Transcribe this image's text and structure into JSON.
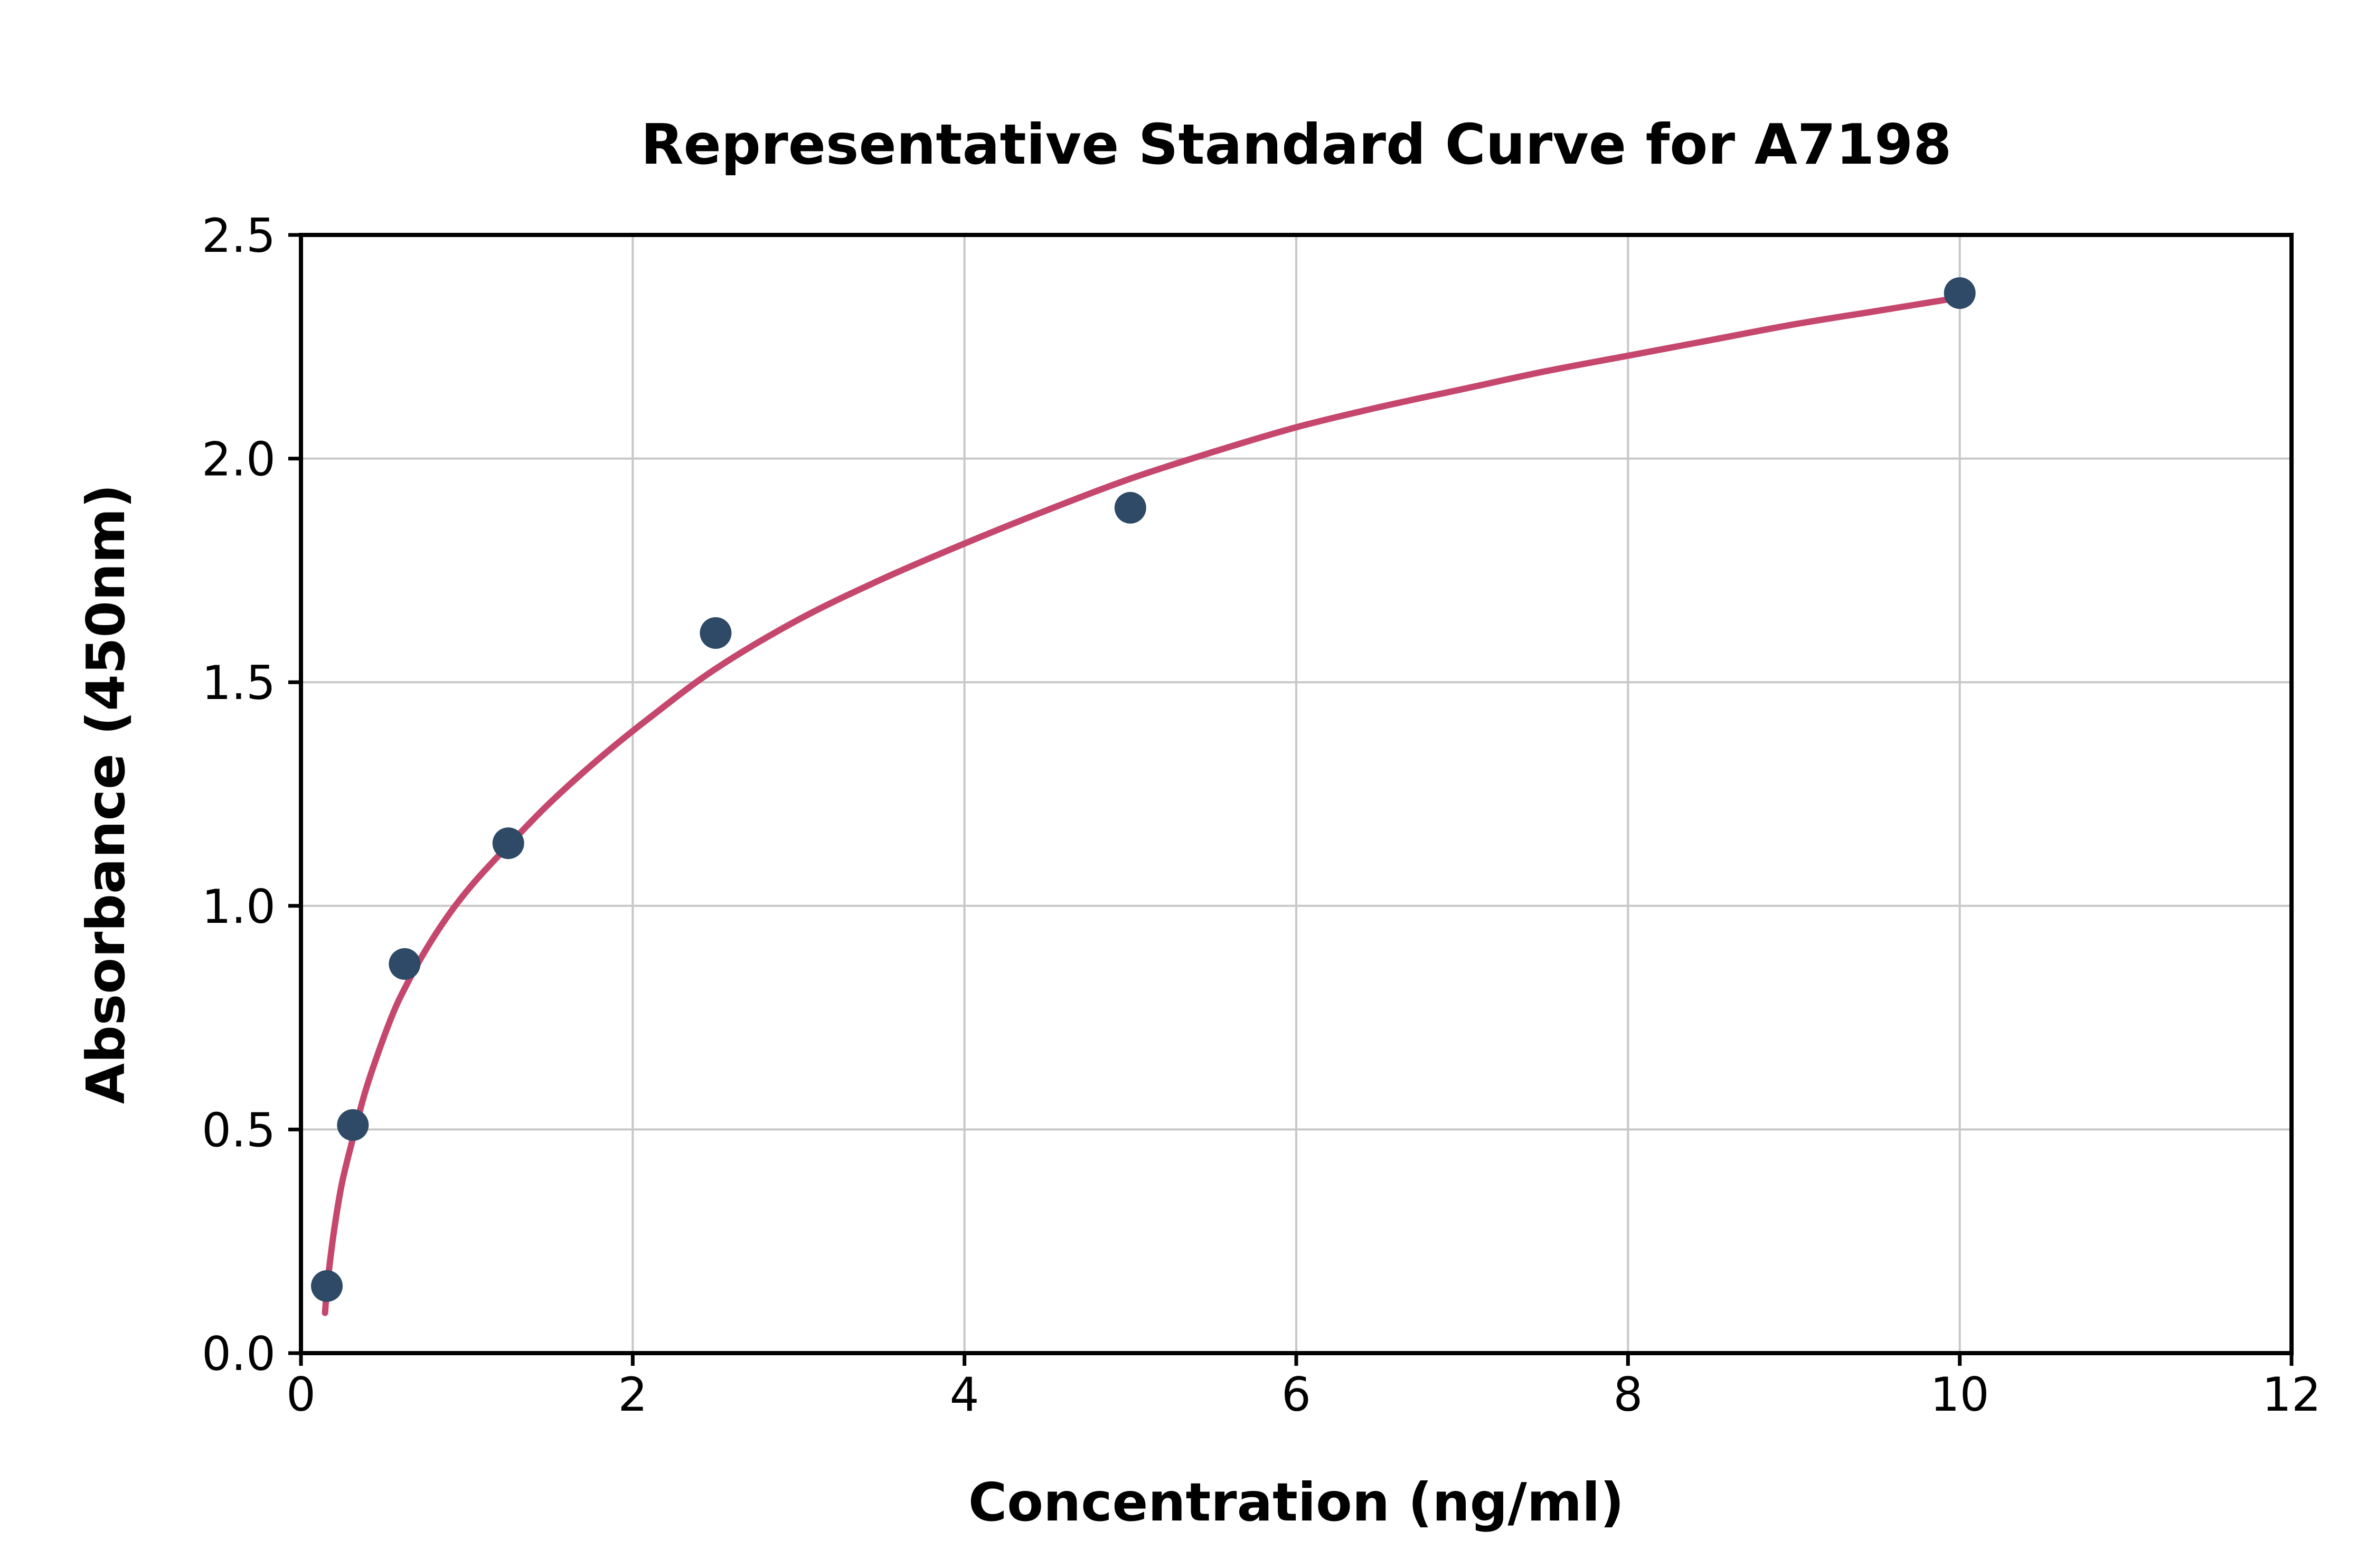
{
  "chart_data": {
    "type": "scatter",
    "title": "Representative Standard Curve for A7198",
    "xlabel": "Concentration (ng/ml)",
    "ylabel": "Absorbance (450nm)",
    "xlim": [
      0,
      12
    ],
    "ylim": [
      0,
      2.5
    ],
    "grid": true,
    "grid_color": "#c8c8c8",
    "x_ticks": [
      {
        "value": 0,
        "label": "0"
      },
      {
        "value": 2,
        "label": "2"
      },
      {
        "value": 4,
        "label": "4"
      },
      {
        "value": 6,
        "label": "6"
      },
      {
        "value": 8,
        "label": "8"
      },
      {
        "value": 10,
        "label": "10"
      },
      {
        "value": 12,
        "label": "12"
      }
    ],
    "y_ticks": [
      {
        "value": 0.0,
        "label": "0.0"
      },
      {
        "value": 0.5,
        "label": "0.5"
      },
      {
        "value": 1.0,
        "label": "1.0"
      },
      {
        "value": 1.5,
        "label": "1.5"
      },
      {
        "value": 2.0,
        "label": "2.0"
      },
      {
        "value": 2.5,
        "label": "2.5"
      }
    ],
    "points": {
      "name": "standards",
      "color": "#2e4a66",
      "marker_radius": 30,
      "x": [
        0.156,
        0.313,
        0.625,
        1.25,
        2.5,
        5,
        10
      ],
      "y": [
        0.15,
        0.51,
        0.87,
        1.14,
        1.61,
        1.89,
        2.37
      ]
    },
    "fit_curve": {
      "name": "standard-curve-fit",
      "color": "#c5476d",
      "line_width": 12,
      "x": [
        0.145,
        0.156,
        0.18,
        0.21,
        0.25,
        0.313,
        0.38,
        0.45,
        0.55,
        0.625,
        0.75,
        0.9,
        1.05,
        1.25,
        1.5,
        1.8,
        2.1,
        2.5,
        3.0,
        3.5,
        4.0,
        4.5,
        5.0,
        5.5,
        6.0,
        6.5,
        7.0,
        7.5,
        8.0,
        8.5,
        9.0,
        9.5,
        10.0
      ],
      "y": [
        0.09,
        0.14,
        0.22,
        0.3,
        0.385,
        0.48,
        0.575,
        0.655,
        0.755,
        0.815,
        0.9,
        0.985,
        1.055,
        1.135,
        1.23,
        1.33,
        1.42,
        1.53,
        1.64,
        1.73,
        1.81,
        1.885,
        1.955,
        2.015,
        2.07,
        2.115,
        2.155,
        2.195,
        2.23,
        2.265,
        2.3,
        2.33,
        2.36
      ]
    }
  }
}
